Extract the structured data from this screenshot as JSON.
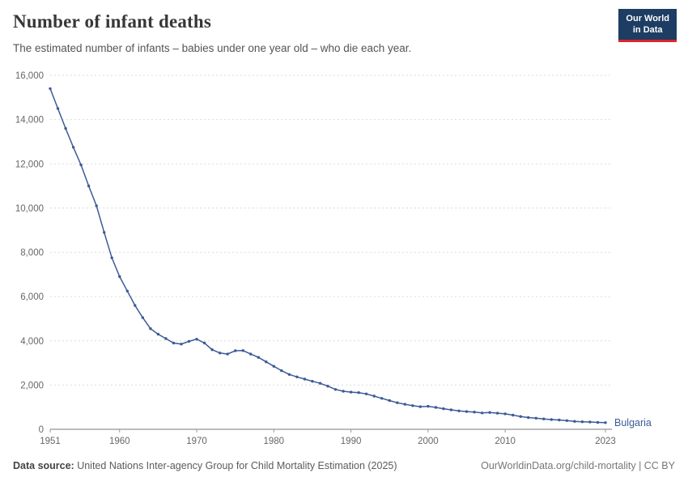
{
  "header": {
    "title": "Number of infant deaths",
    "subtitle": "The estimated number of infants – babies under one year old – who die each year."
  },
  "logo": {
    "line1": "Our World",
    "line2": "in Data"
  },
  "chart_data": {
    "type": "line",
    "title": "Number of infant deaths",
    "xlabel": "",
    "ylabel": "",
    "ylim": [
      0,
      16000
    ],
    "yticks": [
      0,
      2000,
      4000,
      6000,
      8000,
      10000,
      12000,
      14000,
      16000
    ],
    "xticks": [
      1951,
      1960,
      1970,
      1980,
      1990,
      2000,
      2010,
      2023
    ],
    "grid": "dashed-horizontal",
    "legend_position": "end-of-line",
    "x": [
      1951,
      1952,
      1953,
      1954,
      1955,
      1956,
      1957,
      1958,
      1959,
      1960,
      1961,
      1962,
      1963,
      1964,
      1965,
      1966,
      1967,
      1968,
      1969,
      1970,
      1971,
      1972,
      1973,
      1974,
      1975,
      1976,
      1977,
      1978,
      1979,
      1980,
      1981,
      1982,
      1983,
      1984,
      1985,
      1986,
      1987,
      1988,
      1989,
      1990,
      1991,
      1992,
      1993,
      1994,
      1995,
      1996,
      1997,
      1998,
      1999,
      2000,
      2001,
      2002,
      2003,
      2004,
      2005,
      2006,
      2007,
      2008,
      2009,
      2010,
      2011,
      2012,
      2013,
      2014,
      2015,
      2016,
      2017,
      2018,
      2019,
      2020,
      2021,
      2022,
      2023
    ],
    "series": [
      {
        "name": "Bulgaria",
        "color": "#3d5a96",
        "values": [
          15400,
          14500,
          13600,
          12750,
          11950,
          11000,
          10100,
          8900,
          7750,
          6900,
          6250,
          5600,
          5050,
          4550,
          4300,
          4100,
          3900,
          3850,
          3975,
          4075,
          3900,
          3600,
          3450,
          3400,
          3550,
          3560,
          3400,
          3250,
          3050,
          2850,
          2650,
          2480,
          2370,
          2270,
          2170,
          2080,
          1950,
          1800,
          1720,
          1680,
          1660,
          1600,
          1500,
          1400,
          1300,
          1200,
          1130,
          1070,
          1020,
          1040,
          990,
          930,
          880,
          830,
          800,
          780,
          740,
          760,
          730,
          700,
          640,
          580,
          530,
          500,
          470,
          440,
          420,
          390,
          360,
          340,
          330,
          310,
          300
        ]
      }
    ]
  },
  "footer": {
    "source_label": "Data source:",
    "source_text": " United Nations Inter-agency Group for Child Mortality Estimation (2025)",
    "attribution": "OurWorldinData.org/child-mortality | CC BY"
  }
}
